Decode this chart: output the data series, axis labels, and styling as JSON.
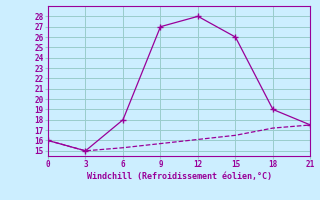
{
  "line1_x": [
    0,
    3,
    6,
    9,
    12,
    15,
    18,
    21
  ],
  "line1_y": [
    16,
    15,
    18,
    27,
    28,
    26,
    19,
    17.5
  ],
  "line2_x": [
    0,
    3,
    6,
    9,
    12,
    15,
    18,
    21
  ],
  "line2_y": [
    16,
    15,
    15.3,
    15.7,
    16.1,
    16.5,
    17.2,
    17.5
  ],
  "line_color": "#990099",
  "bg_color": "#cceeff",
  "grid_color": "#99cccc",
  "xlabel": "Windchill (Refroidissement éolien,°C)",
  "xlabel_color": "#990099",
  "ylabel_ticks": [
    15,
    16,
    17,
    18,
    19,
    20,
    21,
    22,
    23,
    24,
    25,
    26,
    27,
    28
  ],
  "xticks": [
    0,
    3,
    6,
    9,
    12,
    15,
    18,
    21
  ],
  "ylim": [
    14.5,
    29.0
  ],
  "xlim": [
    0,
    21
  ]
}
